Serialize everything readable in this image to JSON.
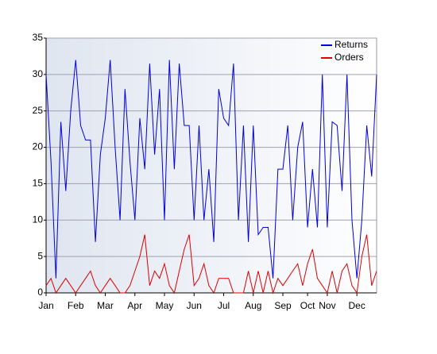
{
  "chart_data": {
    "type": "line",
    "categories": [
      "Jan",
      null,
      null,
      null,
      null,
      null,
      "Feb",
      null,
      null,
      null,
      null,
      null,
      "Mar",
      null,
      null,
      null,
      null,
      null,
      "Apr",
      null,
      null,
      null,
      null,
      null,
      "May",
      null,
      null,
      null,
      null,
      null,
      "Jun",
      null,
      null,
      null,
      null,
      null,
      "Jul",
      null,
      null,
      null,
      null,
      null,
      "Aug",
      null,
      null,
      null,
      null,
      null,
      "Sep",
      null,
      null,
      null,
      null,
      "Oct",
      null,
      null,
      null,
      "Nov",
      null,
      null,
      null,
      null,
      null,
      "Dec",
      null,
      null,
      null,
      null
    ],
    "series": [
      {
        "name": "Returns",
        "color": "#0000dd",
        "values": [
          30,
          18,
          2,
          23.5,
          14,
          25,
          32,
          23,
          21,
          21,
          7,
          19,
          24,
          32,
          20,
          10,
          28,
          18,
          10,
          24,
          17,
          31.5,
          19,
          28,
          10,
          32,
          17,
          31.5,
          23,
          23,
          10,
          23,
          10,
          17,
          7,
          28,
          24,
          23,
          31.5,
          10,
          23,
          7,
          23,
          8,
          9,
          9,
          2,
          17,
          17,
          23,
          10,
          20,
          23.5,
          9,
          17,
          9,
          30,
          9,
          23.5,
          23,
          14,
          30,
          10,
          2,
          10,
          23,
          16,
          30
        ]
      },
      {
        "name": "Orders",
        "color": "#dd0000",
        "values": [
          1,
          2,
          0,
          1,
          2,
          1,
          0,
          1,
          2,
          3,
          1,
          0,
          1,
          2,
          1,
          0,
          0,
          1,
          3,
          5,
          8,
          1,
          3,
          2,
          4,
          1,
          0,
          3,
          6,
          8,
          1,
          2,
          4,
          1,
          0,
          2,
          2,
          2,
          0,
          0,
          0,
          3,
          0,
          3,
          0,
          3,
          0,
          2,
          1,
          2,
          3,
          4,
          1,
          4,
          6,
          2,
          1,
          0,
          3,
          0,
          3,
          4,
          1,
          0,
          5,
          8,
          1,
          3
        ]
      }
    ],
    "ylim": [
      0,
      35
    ],
    "yticks": [
      0,
      5,
      10,
      15,
      20,
      25,
      30,
      35
    ],
    "grid": true,
    "legend": "upper right"
  }
}
